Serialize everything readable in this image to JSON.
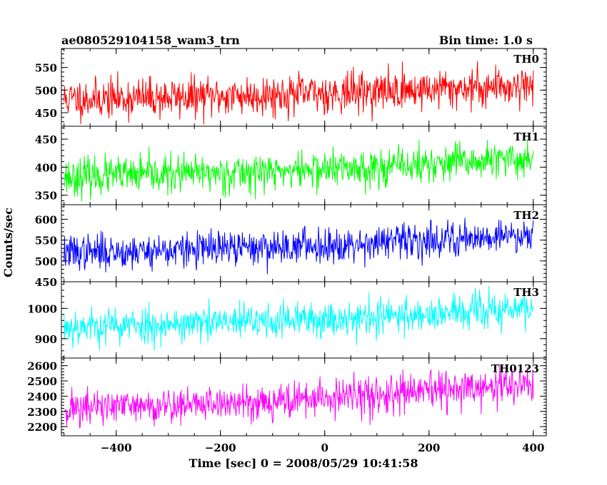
{
  "header": {
    "title": "ae080529104158_wam3_trn",
    "bin_time": "Bin time: 1.0 s"
  },
  "chart_data": {
    "type": "line",
    "title": "ae080529104158_wam3_trn",
    "xlabel": "Time [sec] 0 = 2008/05/29 10:41:58",
    "ylabel": "Counts/sec",
    "xlim": [
      -505,
      425
    ],
    "x_ticks": [
      -400,
      -200,
      0,
      200,
      400
    ],
    "x_tick_labels": [
      "−400",
      "−200",
      "0",
      "200",
      "400"
    ],
    "x_range": [
      -500,
      400
    ],
    "sample_step": 1,
    "grid": false,
    "panels": [
      {
        "name": "TH0",
        "color": "#ff0000",
        "ylim": [
          420,
          592
        ],
        "y_ticks": [
          450,
          500,
          550
        ],
        "y_tick_labels": [
          "450",
          "500",
          "550"
        ],
        "trend_start": 480,
        "trend_end": 512,
        "noise_amplitude": 40,
        "seed": 11
      },
      {
        "name": "TH1",
        "color": "#00ff00",
        "ylim": [
          333,
          473
        ],
        "y_ticks": [
          350,
          400,
          450
        ],
        "y_tick_labels": [
          "350",
          "400",
          "450"
        ],
        "trend_start": 383,
        "trend_end": 415,
        "noise_amplitude": 30,
        "seed": 23
      },
      {
        "name": "TH2",
        "color": "#0000ff",
        "ylim": [
          450,
          635
        ],
        "y_ticks": [
          450,
          500,
          550,
          600
        ],
        "y_tick_labels": [
          "450",
          "500",
          "550",
          "600"
        ],
        "trend_start": 520,
        "trend_end": 565,
        "noise_amplitude": 38,
        "seed": 37
      },
      {
        "name": "TH3",
        "color": "#00ffff",
        "ylim": [
          836,
          1088
        ],
        "y_ticks": [
          900,
          1000
        ],
        "y_tick_labels": [
          "900",
          "1000"
        ],
        "trend_start": 940,
        "trend_end": 1000,
        "noise_amplitude": 55,
        "seed": 53
      },
      {
        "name": "TH0123",
        "color": "#ff00ff",
        "ylim": [
          2140,
          2650
        ],
        "y_ticks": [
          2200,
          2300,
          2400,
          2500,
          2600
        ],
        "y_tick_labels": [
          "2200",
          "2300",
          "2400",
          "2500",
          "2600"
        ],
        "trend_start": 2320,
        "trend_end": 2480,
        "noise_amplitude": 110,
        "seed": 71
      }
    ]
  }
}
